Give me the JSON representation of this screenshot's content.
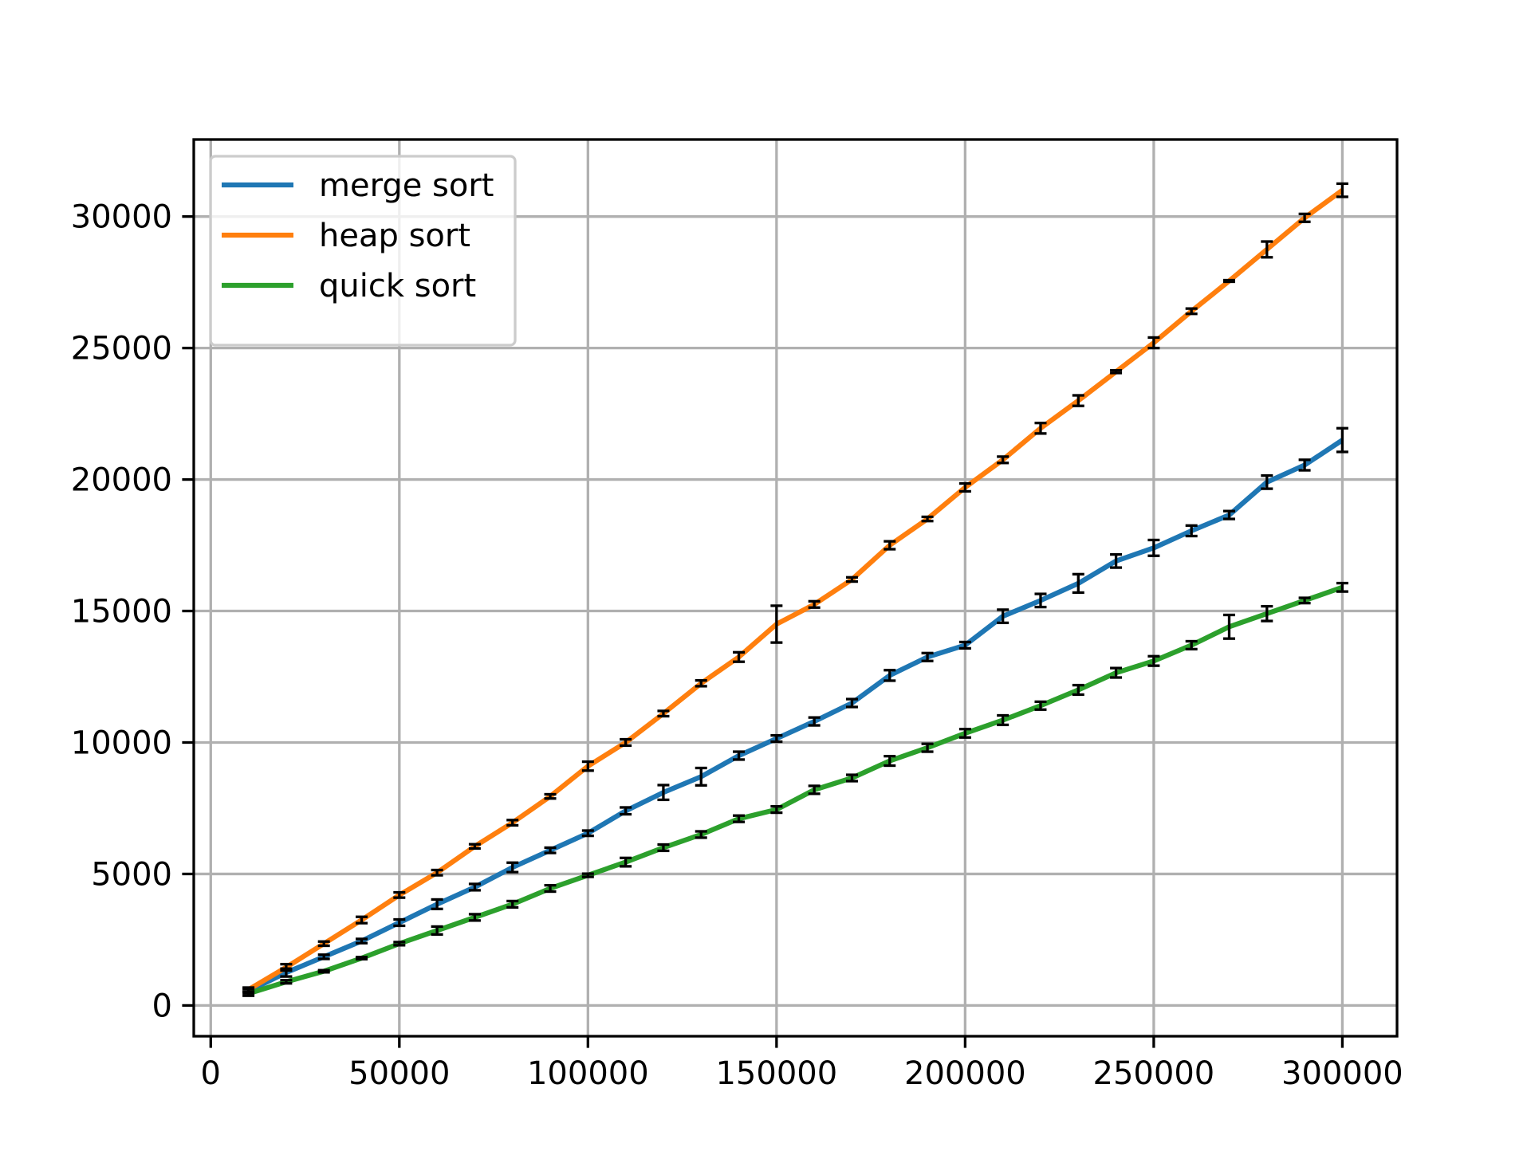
{
  "chart_data": {
    "type": "line",
    "x": [
      10000,
      20000,
      30000,
      40000,
      50000,
      60000,
      70000,
      80000,
      90000,
      100000,
      110000,
      120000,
      130000,
      140000,
      150000,
      160000,
      170000,
      180000,
      190000,
      200000,
      210000,
      220000,
      230000,
      240000,
      250000,
      260000,
      270000,
      280000,
      290000,
      300000
    ],
    "series": [
      {
        "name": "merge sort",
        "color": "#1f77b4",
        "values": [
          550,
          1250,
          1850,
          2450,
          3150,
          3850,
          4500,
          5250,
          5900,
          6550,
          7400,
          8100,
          8700,
          9500,
          10150,
          10800,
          11500,
          12550,
          13250,
          13700,
          14800,
          15400,
          16050,
          16900,
          17400,
          18050,
          18650,
          19900,
          20550,
          21500
        ],
        "errors": [
          80,
          150,
          80,
          80,
          120,
          180,
          120,
          180,
          100,
          100,
          130,
          280,
          330,
          150,
          120,
          150,
          150,
          200,
          150,
          120,
          250,
          250,
          350,
          250,
          300,
          200,
          150,
          250,
          200,
          450
        ]
      },
      {
        "name": "heap sort",
        "color": "#ff7f0e",
        "values": [
          600,
          1450,
          2350,
          3250,
          4200,
          5050,
          6050,
          6950,
          7950,
          9100,
          10000,
          11100,
          12250,
          13250,
          14500,
          15250,
          16200,
          17500,
          18500,
          19700,
          20750,
          21950,
          23000,
          24100,
          25200,
          26400,
          27550,
          28750,
          29950,
          31000
        ],
        "errors": [
          80,
          120,
          80,
          120,
          100,
          100,
          80,
          100,
          80,
          170,
          120,
          100,
          110,
          180,
          700,
          120,
          80,
          150,
          80,
          150,
          120,
          200,
          200,
          50,
          200,
          100,
          30,
          300,
          150,
          250
        ]
      },
      {
        "name": "quick sort",
        "color": "#2ca02c",
        "values": [
          450,
          900,
          1300,
          1800,
          2350,
          2850,
          3350,
          3850,
          4450,
          4950,
          5450,
          6000,
          6500,
          7100,
          7450,
          8200,
          8650,
          9300,
          9800,
          10350,
          10850,
          11400,
          12000,
          12650,
          13100,
          13700,
          14400,
          14900,
          15400,
          15900
        ],
        "errors": [
          80,
          60,
          40,
          40,
          60,
          150,
          120,
          120,
          120,
          60,
          160,
          120,
          120,
          120,
          120,
          150,
          120,
          180,
          150,
          160,
          180,
          150,
          180,
          180,
          180,
          150,
          450,
          280,
          100,
          160
        ]
      }
    ],
    "xlim": [
      -4500,
      314500
    ],
    "xticks": [
      0,
      50000,
      100000,
      150000,
      200000,
      250000,
      300000
    ],
    "ylim": [
      -1170,
      32930
    ],
    "yticks": [
      0,
      5000,
      10000,
      15000,
      20000,
      25000,
      30000
    ],
    "grid": true,
    "legend": "upper left"
  }
}
